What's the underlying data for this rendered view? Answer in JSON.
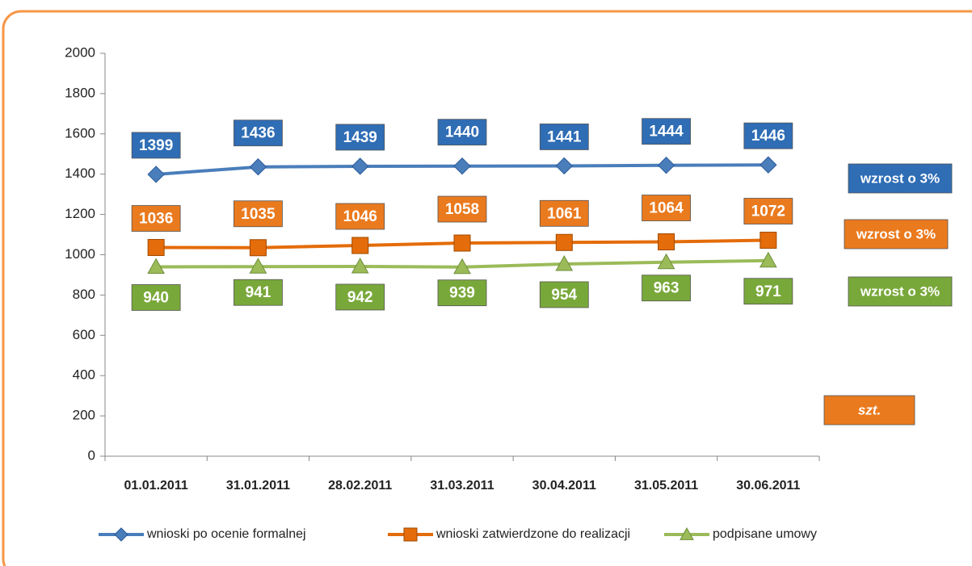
{
  "chart_data": {
    "type": "line",
    "categories": [
      "01.01.2011",
      "31.01.2011",
      "28.02.2011",
      "31.03.2011",
      "30.04.2011",
      "31.05.2011",
      "30.06.2011"
    ],
    "series": [
      {
        "name": "wnioski po ocenie formalnej",
        "color": "#4a7ebb",
        "label_color": "#2f6db5",
        "marker": "diamond",
        "label_side": "above",
        "values": [
          1399,
          1436,
          1439,
          1440,
          1441,
          1444,
          1446
        ]
      },
      {
        "name": "wnioski zatwierdzone do realizacji",
        "color": "#e46c0a",
        "label_color": "#ea7a1e",
        "marker": "square",
        "label_side": "above",
        "values": [
          1036,
          1035,
          1046,
          1058,
          1061,
          1064,
          1072
        ]
      },
      {
        "name": "podpisane umowy",
        "color": "#9bbb59",
        "label_color": "#79a83a",
        "marker": "triangle",
        "label_side": "below",
        "values": [
          940,
          941,
          942,
          939,
          954,
          963,
          971
        ]
      }
    ],
    "ylim": [
      0,
      2000
    ],
    "yticks": [
      0,
      200,
      400,
      600,
      800,
      1000,
      1200,
      1400,
      1600,
      1800,
      2000
    ],
    "grid": false,
    "legend": "bottom",
    "annotations": [
      {
        "text": "wzrost o 3%",
        "color": "#2f6db5"
      },
      {
        "text": "wzrost o 3%",
        "color": "#ea7a1e"
      },
      {
        "text": "wzrost o 3%",
        "color": "#79a83a"
      },
      {
        "text": "szt.",
        "color": "#ea7a1e"
      }
    ]
  }
}
